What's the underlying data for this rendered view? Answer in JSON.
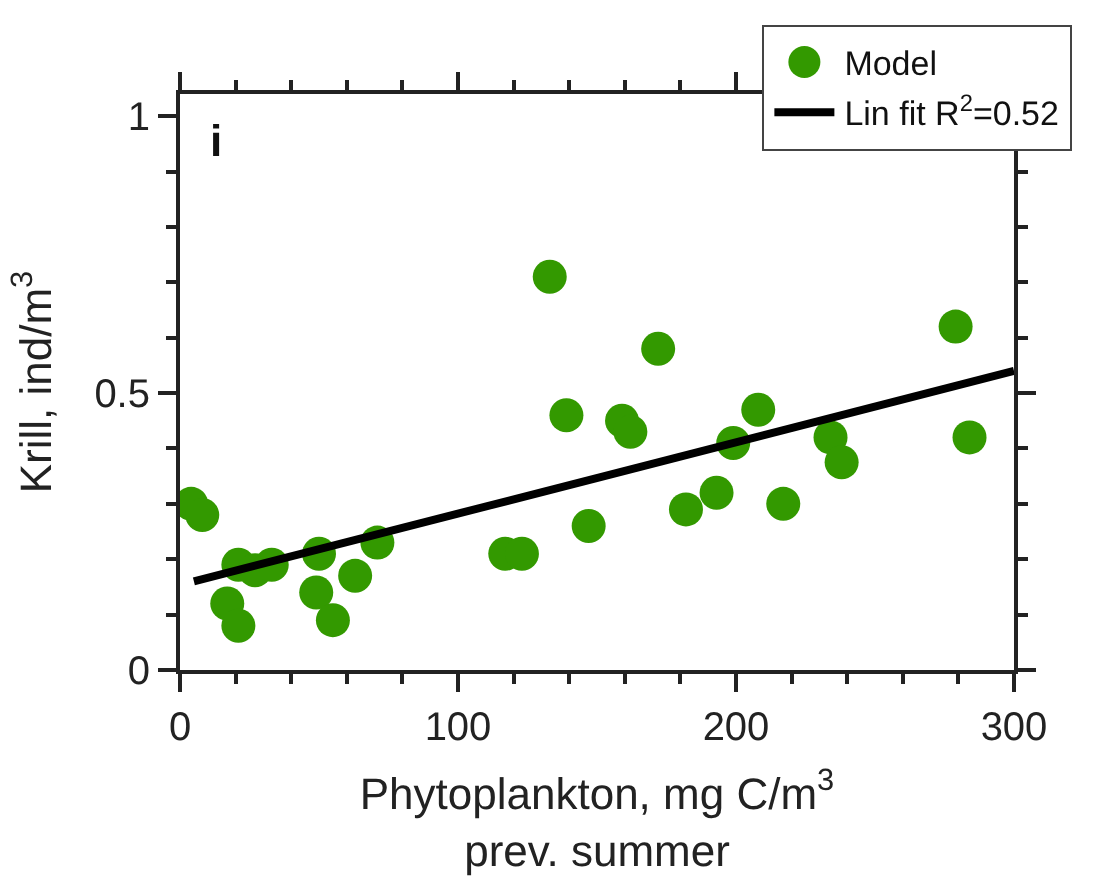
{
  "chart_data": {
    "type": "scatter",
    "xlabel": "Phytoplankton, mg C/m$^{3}$\nprev. summer",
    "ylabel": "Krill, ind/m$^{3}$",
    "annotations": [
      "i"
    ],
    "xlim": [
      0,
      300
    ],
    "xticks": [
      0,
      100,
      200,
      300
    ],
    "ylim": [
      0,
      1.04
    ],
    "yticks": [
      0,
      0.5,
      1
    ],
    "legend": "top right",
    "marker": "circle",
    "series": [
      {
        "name": "Model",
        "color": "#339900",
        "x": [
          4,
          8,
          17,
          21,
          21,
          27,
          33,
          49,
          50,
          55,
          63,
          71,
          117,
          123,
          133,
          139,
          147,
          159,
          162,
          172,
          182,
          193,
          199,
          208,
          217,
          234,
          238,
          279,
          284
        ],
        "values": [
          0.3,
          0.28,
          0.12,
          0.08,
          0.19,
          0.18,
          0.19,
          0.14,
          0.21,
          0.09,
          0.17,
          0.23,
          0.21,
          0.21,
          0.71,
          0.46,
          0.26,
          0.45,
          0.43,
          0.58,
          0.29,
          0.32,
          0.41,
          0.47,
          0.3,
          0.42,
          0.375,
          0.62,
          0.42
        ]
      },
      {
        "name": "Lin fit R$^{2}$=0.52",
        "type": "line",
        "color": "#000000",
        "marker": "none",
        "x": [
          5,
          300
        ],
        "values": [
          0.16,
          0.54
        ]
      }
    ]
  }
}
